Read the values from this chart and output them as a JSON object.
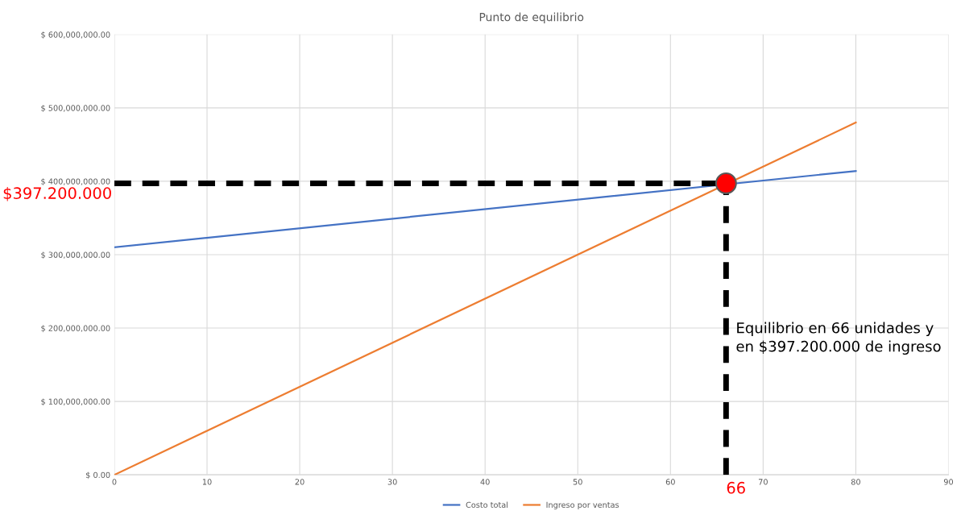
{
  "chart_data": {
    "type": "line",
    "title": "Punto de equilibrio",
    "series": [
      {
        "name": "Costo total",
        "color": "#4472c4",
        "x": [
          0,
          80
        ],
        "values": [
          310000000,
          414000000
        ]
      },
      {
        "name": "Ingreso por ventas",
        "color": "#ed7d31",
        "x": [
          0,
          80
        ],
        "values": [
          0,
          480000000
        ]
      },
      {
        "type": "line",
        "color": "#000000",
        "line_style": "dashed",
        "x": [
          0,
          66
        ],
        "values": [
          397200000,
          397200000
        ]
      },
      {
        "type": "line",
        "color": "#000000",
        "line_style": "dashed",
        "x": [
          66,
          66
        ],
        "values": [
          0,
          397200000
        ]
      },
      {
        "type": "scatter",
        "color": "#ff0000",
        "marker": "circle",
        "x": [
          66
        ],
        "values": [
          397200000
        ]
      }
    ],
    "xlim": [
      0,
      90
    ],
    "xticks": [
      0,
      10,
      20,
      30,
      40,
      50,
      60,
      70,
      80,
      90
    ],
    "ylim": [
      0,
      600000000
    ],
    "yticks": [
      {
        "value": 0,
        "label": "$ 0.00"
      },
      {
        "value": 100000000,
        "label": "$ 100,000,000.00"
      },
      {
        "value": 200000000,
        "label": "$ 200,000,000.00"
      },
      {
        "value": 300000000,
        "label": "$ 300,000,000.00"
      },
      {
        "value": 400000000,
        "label": "$ 400,000,000.00"
      },
      {
        "value": 500000000,
        "label": "$ 500,000,000.00"
      },
      {
        "value": 600000000,
        "label": "$ 600,000,000.00"
      }
    ],
    "grid": true,
    "legend": "bottom",
    "annotations": [
      {
        "text": "$397.200.000",
        "x": 0,
        "y": 397200000
      },
      {
        "text": "66",
        "x": 66,
        "y": 0
      },
      "Equilibrio en 66 unidades y\nen $397.200.000 de ingreso"
    ]
  }
}
